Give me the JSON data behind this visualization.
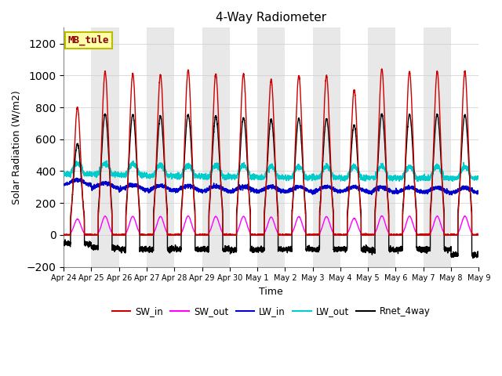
{
  "title": "4-Way Radiometer",
  "xlabel": "Time",
  "ylabel": "Solar Radiation (W/m2)",
  "ylim": [
    -200,
    1300
  ],
  "yticks": [
    -200,
    0,
    200,
    400,
    600,
    800,
    1000,
    1200
  ],
  "station_label": "MB_tule",
  "background_color": "#ffffff",
  "plot_bg_color": "#ffffff",
  "band_color": "#e8e8e8",
  "legend_entries": [
    "SW_in",
    "SW_out",
    "LW_in",
    "LW_out",
    "Rnet_4way"
  ],
  "legend_colors": [
    "#cc0000",
    "#ff00ff",
    "#0000cc",
    "#00cccc",
    "#000000"
  ],
  "num_days": 15,
  "x_tick_labels": [
    "Apr 24",
    "Apr 25",
    "Apr 26",
    "Apr 27",
    "Apr 28",
    "Apr 29",
    "Apr 30",
    "May 1",
    "May 2",
    "May 3",
    "May 4",
    "May 5",
    "May 6",
    "May 7",
    "May 8",
    "May 9"
  ]
}
